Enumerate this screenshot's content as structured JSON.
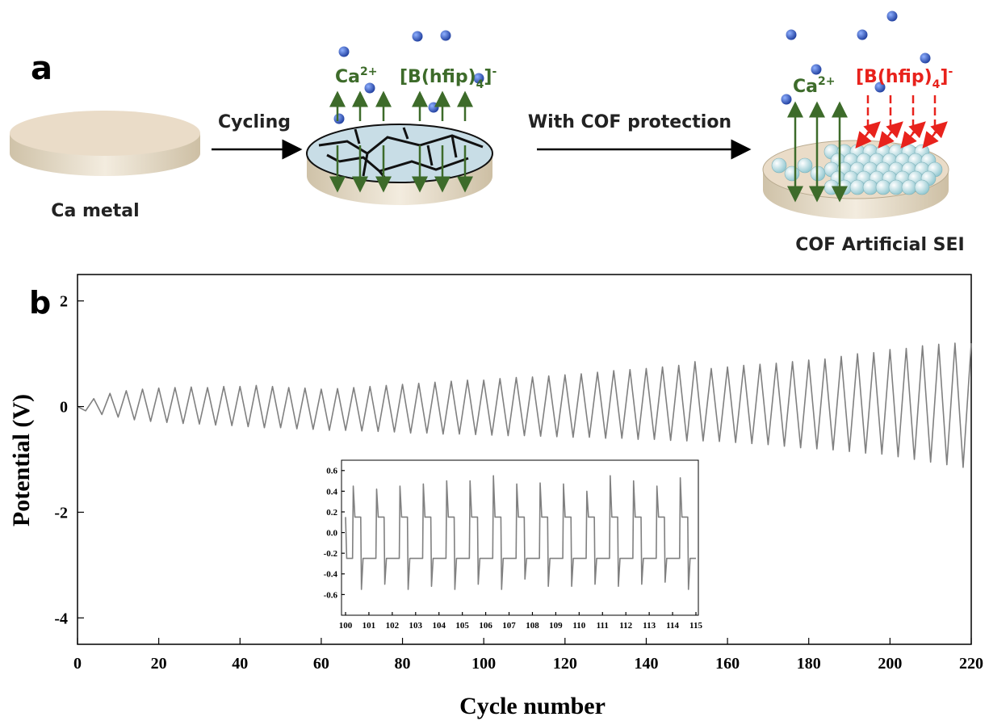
{
  "diagram": {
    "panel_a_label": "a",
    "cycling_label": "Cycling",
    "cof_label": "With COF protection",
    "ca_metal_label": "Ca metal",
    "cof_sei_label": "COF Artificial SEI",
    "panel_b_label": "b",
    "middle_ions": {
      "cation": {
        "base": "Ca",
        "sup": "2+"
      },
      "anion": {
        "base": "[B(hfip)",
        "sub": "4",
        "close": "]",
        "sup": "-"
      }
    },
    "right_ions": {
      "cation": {
        "base": "Ca",
        "sup": "2+"
      },
      "anion": {
        "base": "[B(hfip)",
        "sub": "4",
        "close": "]",
        "sup": "-"
      }
    }
  },
  "chart_data": [
    {
      "type": "line",
      "xlabel": "Cycle number",
      "ylabel": "Potential (V)",
      "color": "#808080",
      "xlim": [
        0,
        220
      ],
      "xticks": [
        0,
        20,
        40,
        60,
        80,
        100,
        120,
        140,
        160,
        180,
        200,
        220
      ],
      "ylim": [
        -4.5,
        2.5
      ],
      "yticks": [
        -4,
        -2,
        0,
        2
      ],
      "x": [
        0,
        2,
        4,
        6,
        8,
        10,
        12,
        14,
        16,
        18,
        20,
        22,
        24,
        26,
        28,
        30,
        32,
        34,
        36,
        38,
        40,
        42,
        44,
        46,
        48,
        50,
        52,
        54,
        56,
        58,
        60,
        62,
        64,
        66,
        68,
        70,
        72,
        74,
        76,
        78,
        80,
        82,
        84,
        86,
        88,
        90,
        92,
        94,
        96,
        98,
        100,
        102,
        104,
        106,
        108,
        110,
        112,
        114,
        116,
        118,
        120,
        122,
        124,
        126,
        128,
        130,
        132,
        134,
        136,
        138,
        140,
        142,
        144,
        146,
        148,
        150,
        152,
        154,
        156,
        158,
        160,
        162,
        164,
        166,
        168,
        170,
        172,
        174,
        176,
        178,
        180,
        182,
        184,
        186,
        188,
        190,
        192,
        194,
        196,
        198,
        200,
        202,
        204,
        206,
        208,
        210,
        212,
        214,
        216,
        218,
        220
      ],
      "values": [
        0,
        -0.08,
        0.15,
        -0.15,
        0.25,
        -0.2,
        0.3,
        -0.25,
        0.33,
        -0.28,
        0.35,
        -0.3,
        0.36,
        -0.32,
        0.37,
        -0.33,
        0.36,
        -0.35,
        0.38,
        -0.36,
        0.38,
        -0.38,
        0.4,
        -0.4,
        0.38,
        -0.4,
        0.36,
        -0.42,
        0.35,
        -0.43,
        0.33,
        -0.45,
        0.34,
        -0.45,
        0.36,
        -0.46,
        0.38,
        -0.47,
        0.4,
        -0.48,
        0.42,
        -0.5,
        0.44,
        -0.5,
        0.46,
        -0.52,
        0.48,
        -0.52,
        0.5,
        -0.53,
        0.5,
        -0.54,
        0.53,
        -0.55,
        0.55,
        -0.55,
        0.56,
        -0.56,
        0.58,
        -0.57,
        0.6,
        -0.58,
        0.62,
        -0.58,
        0.65,
        -0.6,
        0.68,
        -0.6,
        0.7,
        -0.62,
        0.72,
        -0.62,
        0.75,
        -0.64,
        0.78,
        -0.65,
        0.85,
        -0.65,
        0.72,
        -0.66,
        0.75,
        -0.68,
        0.78,
        -0.7,
        0.8,
        -0.72,
        0.82,
        -0.75,
        0.85,
        -0.78,
        0.88,
        -0.8,
        0.9,
        -0.82,
        0.95,
        -0.85,
        1.0,
        -0.88,
        1.02,
        -0.9,
        1.08,
        -0.95,
        1.1,
        -1.0,
        1.15,
        -1.05,
        1.18,
        -1.1,
        1.2,
        -1.15,
        1.2
      ]
    },
    {
      "type": "line",
      "color": "#808080",
      "xlim": [
        100,
        115
      ],
      "xticks": [
        100,
        101,
        102,
        103,
        104,
        105,
        106,
        107,
        108,
        109,
        110,
        111,
        112,
        113,
        114,
        115
      ],
      "ylim": [
        -0.8,
        0.7
      ],
      "yticks": [
        0.6,
        0.4,
        0.2,
        {
          "value": 0,
          "label": "0.0"
        },
        -0.2,
        -0.4,
        -0.6
      ],
      "x": [
        100,
        100.05,
        100.3,
        100.33,
        100.4,
        100.65,
        100.68,
        100.75,
        101.3,
        101.33,
        101.4,
        101.65,
        101.68,
        101.75,
        102.3,
        102.33,
        102.4,
        102.65,
        102.68,
        102.75,
        103.3,
        103.33,
        103.4,
        103.65,
        103.68,
        103.75,
        104.3,
        104.33,
        104.4,
        104.65,
        104.68,
        104.75,
        105.3,
        105.33,
        105.4,
        105.65,
        105.68,
        105.75,
        106.3,
        106.33,
        106.4,
        106.65,
        106.68,
        106.75,
        107.3,
        107.33,
        107.4,
        107.65,
        107.68,
        107.75,
        108.3,
        108.33,
        108.4,
        108.65,
        108.68,
        108.75,
        109.3,
        109.33,
        109.4,
        109.65,
        109.68,
        109.75,
        110.3,
        110.33,
        110.4,
        110.65,
        110.68,
        110.75,
        111.3,
        111.33,
        111.4,
        111.65,
        111.68,
        111.75,
        112.3,
        112.33,
        112.4,
        112.65,
        112.68,
        112.75,
        113.3,
        113.33,
        113.4,
        113.65,
        113.68,
        113.75,
        114.3,
        114.33,
        114.4,
        114.65,
        114.68,
        114.75,
        115
      ],
      "values": [
        0.15,
        -0.25,
        -0.25,
        0.45,
        0.15,
        0.15,
        -0.55,
        -0.25,
        -0.25,
        0.42,
        0.15,
        0.15,
        -0.5,
        -0.25,
        -0.25,
        0.45,
        0.15,
        0.15,
        -0.55,
        -0.25,
        -0.25,
        0.47,
        0.15,
        0.15,
        -0.52,
        -0.25,
        -0.25,
        0.5,
        0.15,
        0.15,
        -0.55,
        -0.25,
        -0.25,
        0.5,
        0.15,
        0.15,
        -0.5,
        -0.25,
        -0.25,
        0.55,
        0.15,
        0.15,
        -0.55,
        -0.25,
        -0.25,
        0.47,
        0.15,
        0.15,
        -0.45,
        -0.25,
        -0.25,
        0.48,
        0.15,
        0.15,
        -0.52,
        -0.25,
        -0.25,
        0.47,
        0.15,
        0.15,
        -0.52,
        -0.25,
        -0.25,
        0.4,
        0.15,
        0.15,
        -0.5,
        -0.25,
        -0.25,
        0.55,
        0.15,
        0.15,
        -0.52,
        -0.25,
        -0.25,
        0.5,
        0.15,
        0.15,
        -0.5,
        -0.25,
        -0.25,
        0.45,
        0.15,
        0.15,
        -0.48,
        -0.25,
        -0.25,
        0.53,
        0.15,
        0.15,
        -0.55,
        -0.25,
        -0.25
      ]
    }
  ]
}
